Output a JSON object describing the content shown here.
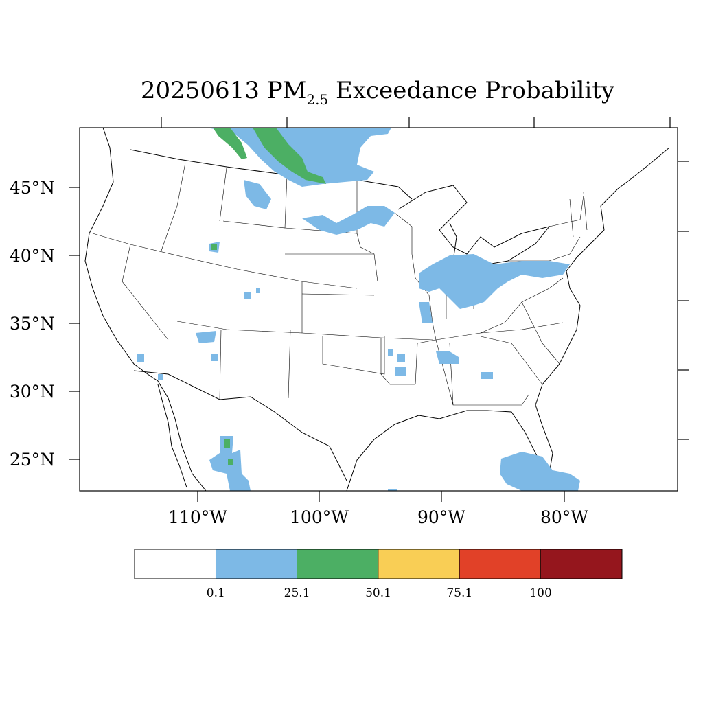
{
  "map": {
    "title_pre": "20250613 PM",
    "title_sub": "2.5",
    "title_post": " Exceedance Probability",
    "lat_labels": [
      "45°N",
      "40°N",
      "35°N",
      "30°N",
      "25°N"
    ],
    "lon_labels": [
      "110°W",
      "100°W",
      "90°W",
      "80°W"
    ]
  },
  "legend": {
    "levels": [
      "0.1",
      "25.1",
      "50.1",
      "75.1",
      "100"
    ],
    "colors": [
      "#ffffff",
      "#7db9e6",
      "#4caf64",
      "#f9ce55",
      "#e14128",
      "#95161d"
    ]
  }
}
